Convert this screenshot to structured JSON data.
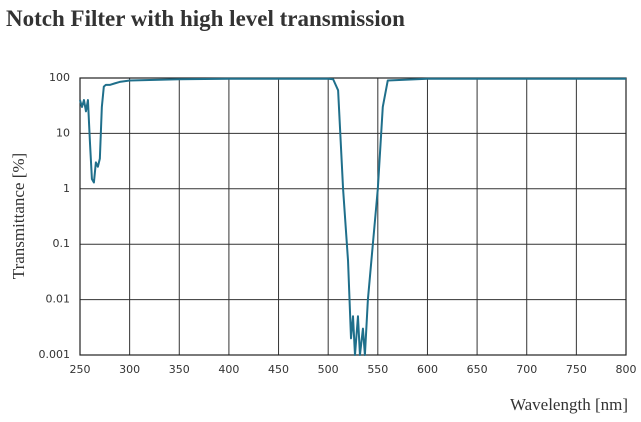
{
  "chart_data": {
    "type": "line",
    "title": "Notch Filter with high level transmission",
    "xlabel": "Wavelength [nm]",
    "ylabel": "Transmittance [%]",
    "x": [
      250,
      252,
      254,
      256,
      258,
      260,
      262,
      264,
      266,
      268,
      270,
      272,
      274,
      276,
      280,
      285,
      290,
      300,
      350,
      400,
      450,
      500,
      505,
      510,
      515,
      520,
      523,
      525,
      527,
      530,
      532,
      535,
      537,
      540,
      545,
      550,
      555,
      560,
      600,
      700,
      800
    ],
    "values": [
      40,
      30,
      40,
      25,
      40,
      7,
      1.5,
      1.3,
      3,
      2.5,
      3.5,
      30,
      70,
      75,
      75,
      80,
      85,
      90,
      95,
      97,
      97,
      97,
      95,
      60,
      1,
      0.05,
      0.002,
      0.005,
      0.001,
      0.005,
      0.001,
      0.003,
      0.001,
      0.01,
      0.1,
      1,
      30,
      90,
      97,
      97,
      97
    ],
    "color": "#1f6f8b",
    "xlim": [
      250,
      800
    ],
    "xticks": [
      250,
      300,
      350,
      400,
      450,
      500,
      550,
      600,
      650,
      700,
      750,
      800
    ],
    "ylim": [
      0.001,
      100
    ],
    "yticks": [
      0.001,
      0.01,
      0.1,
      1,
      10,
      100
    ],
    "y_log": true,
    "grid": true
  }
}
